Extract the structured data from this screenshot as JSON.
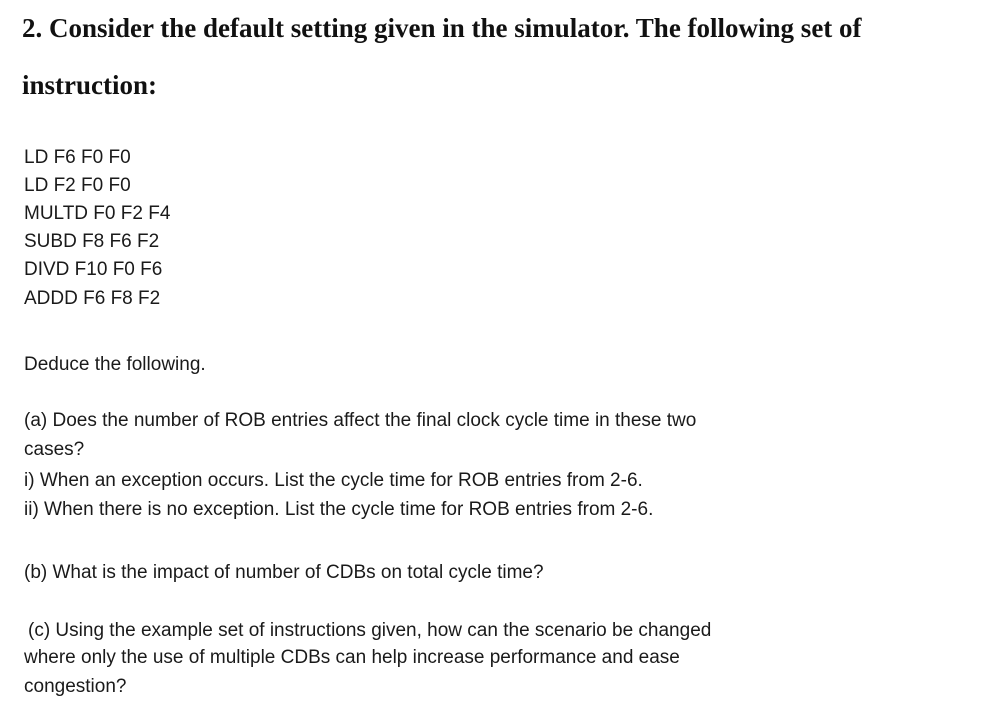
{
  "heading": {
    "line1": "2. Consider the default setting given in the simulator. The following set of",
    "line2": "instruction:"
  },
  "instructions": [
    "LD F6 F0 F0",
    "LD F2 F0 F0",
    "MULTD F0 F2 F4",
    "SUBD F8 F6 F2",
    "DIVD F10 F0 F6",
    "ADDD F6 F8 F2"
  ],
  "intro": "Deduce the following.",
  "part_a": {
    "line1": "(a) Does the number of ROB entries affect the final clock cycle time in these two",
    "line2": "cases?",
    "i": "i) When an exception occurs. List the cycle time for ROB entries from 2-6.",
    "ii": "ii) When there is no exception. List the cycle time for ROB entries from 2-6."
  },
  "part_b": "(b) What is the impact of number of CDBs on total cycle time?",
  "part_c": {
    "line1": "(c) Using the example set of instructions given, how can the scenario be changed",
    "line2": "where only the use of multiple CDBs can help increase performance and ease",
    "line3": "congestion?"
  }
}
